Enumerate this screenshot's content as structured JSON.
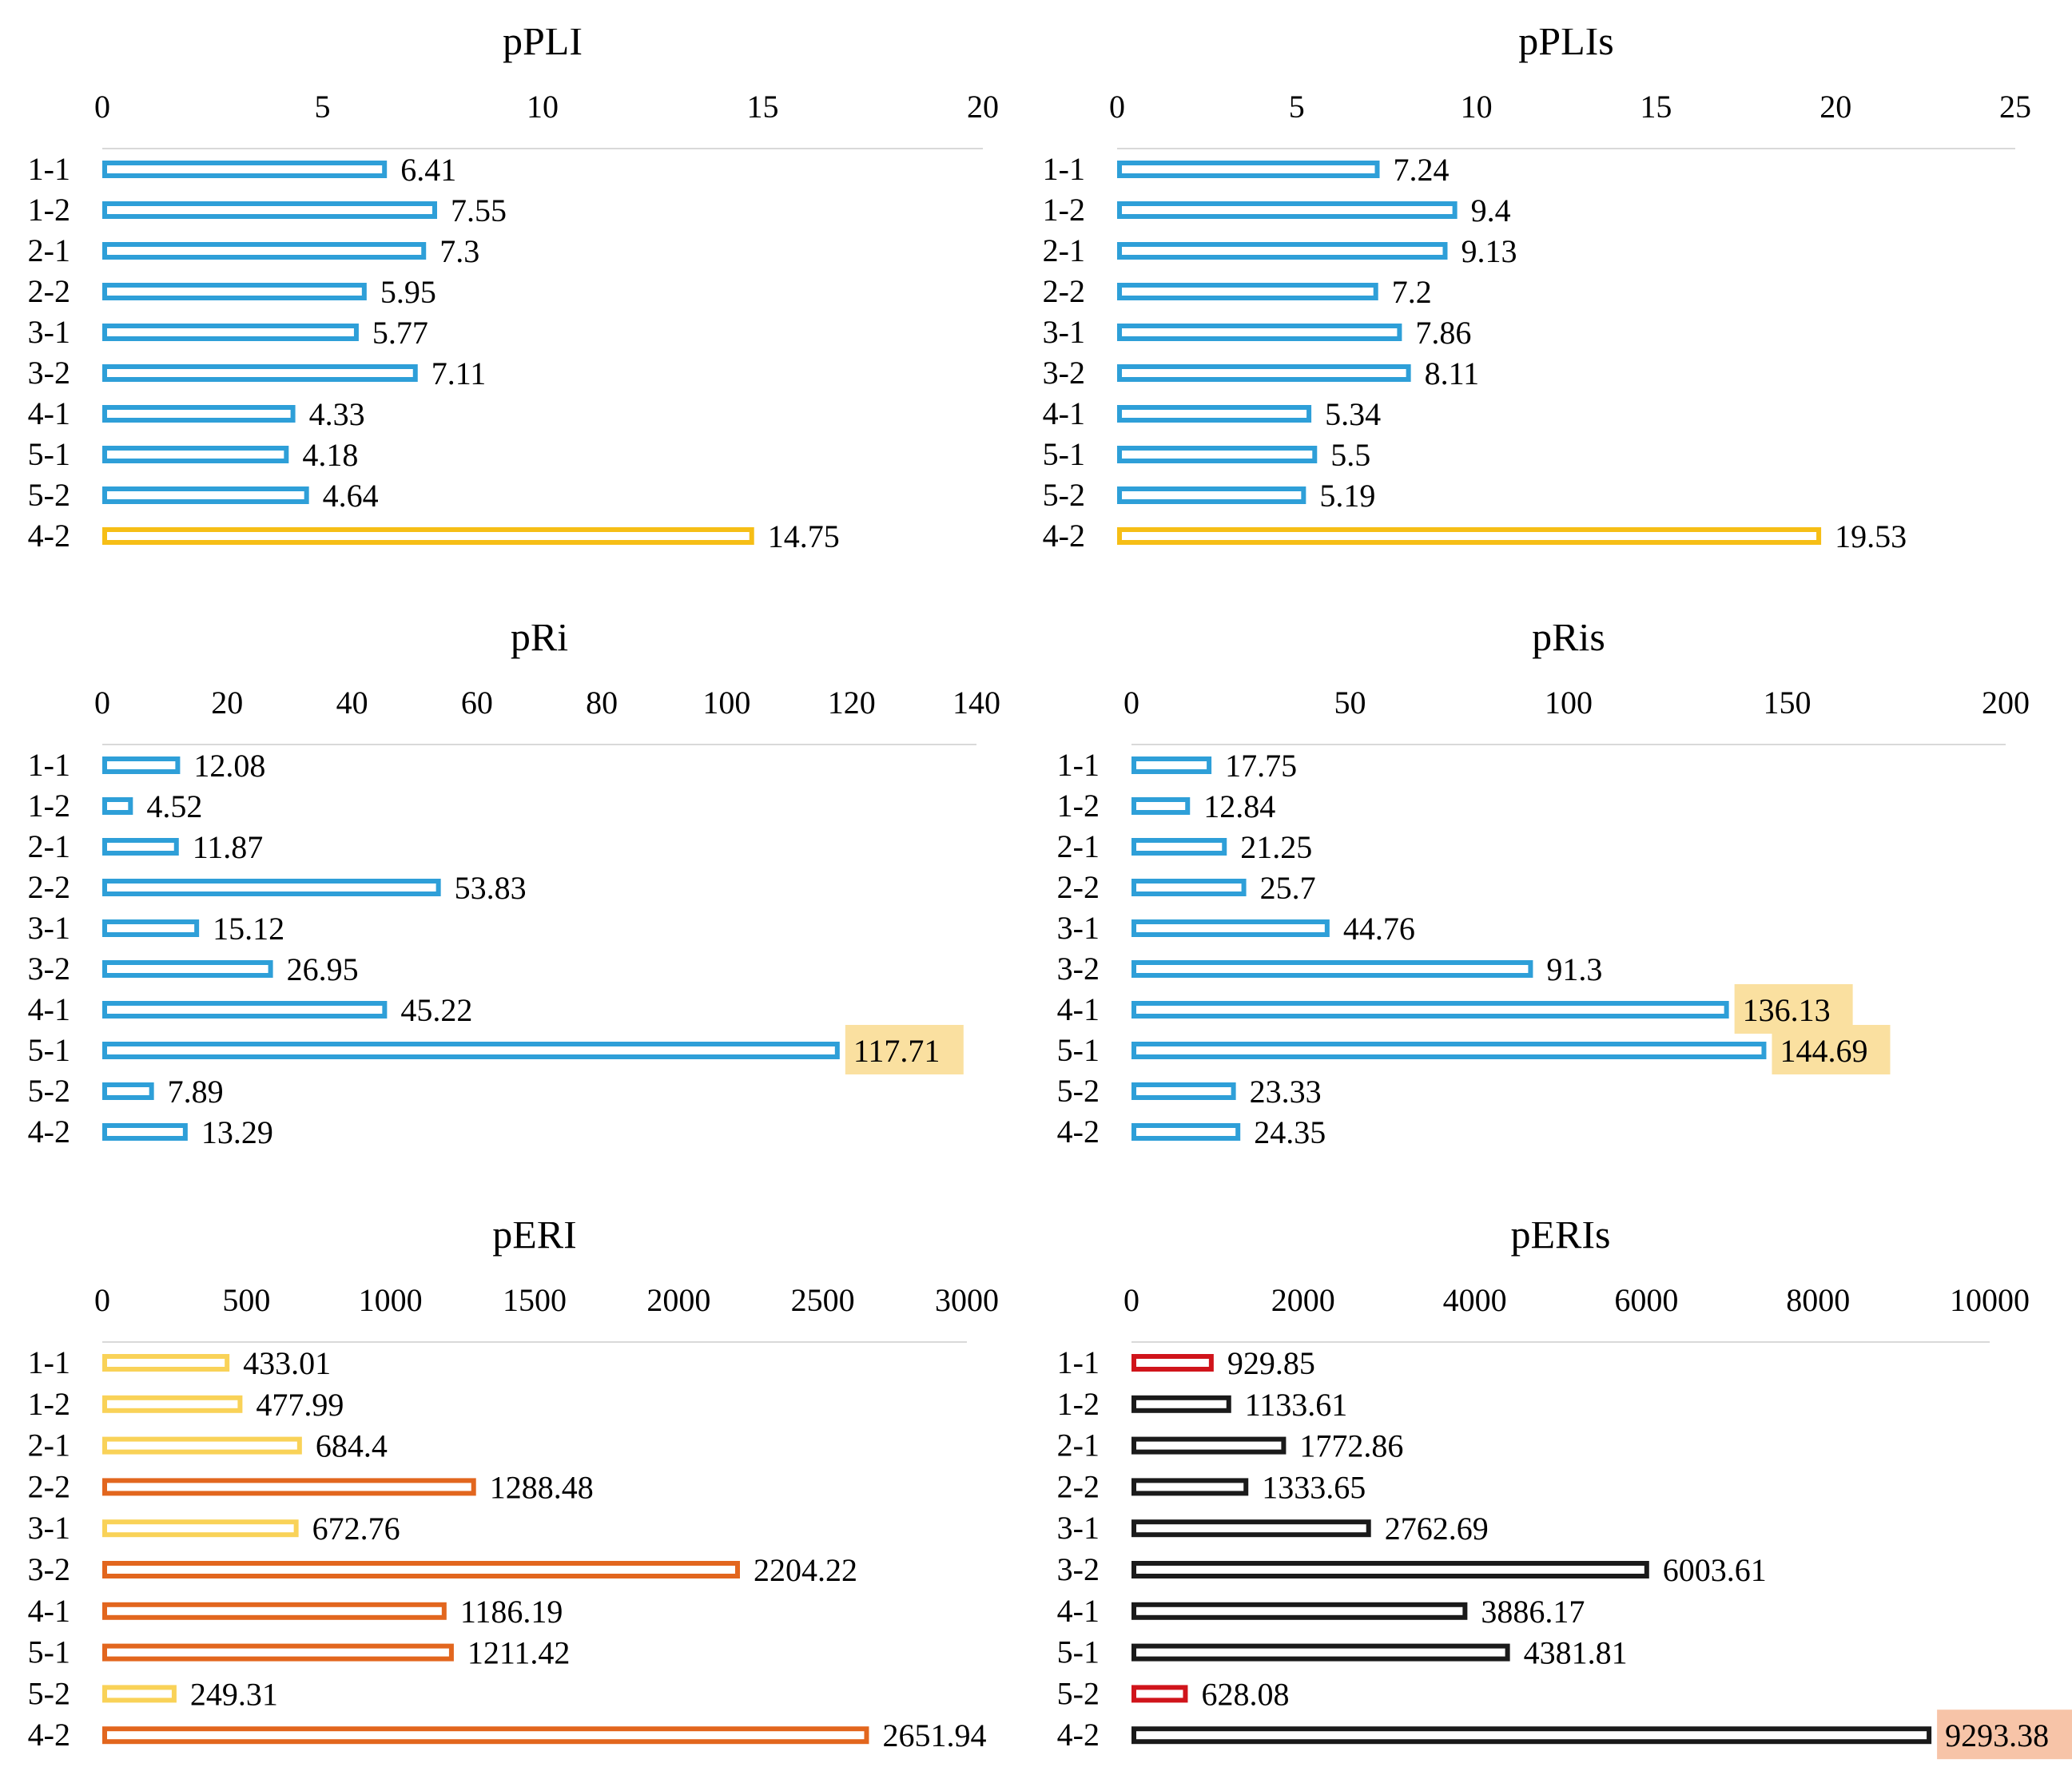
{
  "chart_data": [
    {
      "type": "bar",
      "orientation": "horizontal",
      "title": "pPLI",
      "xlim": [
        0,
        20
      ],
      "ticks": [
        0,
        5,
        10,
        15,
        20
      ],
      "categories": [
        "1-1",
        "1-2",
        "2-1",
        "2-2",
        "3-1",
        "3-2",
        "4-1",
        "5-1",
        "5-2",
        "4-2"
      ],
      "values": [
        6.41,
        7.55,
        7.3,
        5.95,
        5.77,
        7.11,
        4.33,
        4.18,
        4.64,
        14.75
      ],
      "labels": [
        "6.41",
        "7.55",
        "7.3",
        "5.95",
        "5.77",
        "7.11",
        "4.33",
        "4.18",
        "4.64",
        "14.75"
      ],
      "bar_colors": [
        "#2E9FD8",
        "#2E9FD8",
        "#2E9FD8",
        "#2E9FD8",
        "#2E9FD8",
        "#2E9FD8",
        "#2E9FD8",
        "#2E9FD8",
        "#2E9FD8",
        "#F6BE16"
      ],
      "label_highlights": [
        null,
        null,
        null,
        null,
        null,
        null,
        null,
        null,
        null,
        null
      ]
    },
    {
      "type": "bar",
      "orientation": "horizontal",
      "title": "pPLIs",
      "xlim": [
        0,
        25
      ],
      "ticks": [
        0,
        5,
        10,
        15,
        20,
        25
      ],
      "categories": [
        "1-1",
        "1-2",
        "2-1",
        "2-2",
        "3-1",
        "3-2",
        "4-1",
        "5-1",
        "5-2",
        "4-2"
      ],
      "values": [
        7.24,
        9.4,
        9.13,
        7.2,
        7.86,
        8.11,
        5.34,
        5.5,
        5.19,
        19.53
      ],
      "labels": [
        "7.24",
        "9.4",
        "9.13",
        "7.2",
        "7.86",
        "8.11",
        "5.34",
        "5.5",
        "5.19",
        "19.53"
      ],
      "bar_colors": [
        "#2E9FD8",
        "#2E9FD8",
        "#2E9FD8",
        "#2E9FD8",
        "#2E9FD8",
        "#2E9FD8",
        "#2E9FD8",
        "#2E9FD8",
        "#2E9FD8",
        "#F6BE16"
      ],
      "label_highlights": [
        null,
        null,
        null,
        null,
        null,
        null,
        null,
        null,
        null,
        null
      ]
    },
    {
      "type": "bar",
      "orientation": "horizontal",
      "title": "pRi",
      "xlim": [
        0,
        140
      ],
      "ticks": [
        0,
        20,
        40,
        60,
        80,
        100,
        120,
        140
      ],
      "categories": [
        "1-1",
        "1-2",
        "2-1",
        "2-2",
        "3-1",
        "3-2",
        "4-1",
        "5-1",
        "5-2",
        "4-2"
      ],
      "values": [
        12.08,
        4.52,
        11.87,
        53.83,
        15.12,
        26.95,
        45.22,
        117.71,
        7.89,
        13.29
      ],
      "labels": [
        "12.08",
        "4.52",
        "11.87",
        "53.83",
        "15.12",
        "26.95",
        "45.22",
        "117.71",
        "7.89",
        "13.29"
      ],
      "bar_colors": [
        "#2E9FD8",
        "#2E9FD8",
        "#2E9FD8",
        "#2E9FD8",
        "#2E9FD8",
        "#2E9FD8",
        "#2E9FD8",
        "#2E9FD8",
        "#2E9FD8",
        "#2E9FD8"
      ],
      "label_highlights": [
        null,
        null,
        null,
        null,
        null,
        null,
        null,
        "#FAE0A0",
        null,
        null
      ]
    },
    {
      "type": "bar",
      "orientation": "horizontal",
      "title": "pRis",
      "xlim": [
        0,
        200
      ],
      "ticks": [
        0,
        50,
        100,
        150,
        200
      ],
      "categories": [
        "1-1",
        "1-2",
        "2-1",
        "2-2",
        "3-1",
        "3-2",
        "4-1",
        "5-1",
        "5-2",
        "4-2"
      ],
      "values": [
        17.75,
        12.84,
        21.25,
        25.7,
        44.76,
        91.3,
        136.13,
        144.69,
        23.33,
        24.35
      ],
      "labels": [
        "17.75",
        "12.84",
        "21.25",
        "25.7",
        "44.76",
        "91.3",
        "136.13",
        "144.69",
        "23.33",
        "24.35"
      ],
      "bar_colors": [
        "#2E9FD8",
        "#2E9FD8",
        "#2E9FD8",
        "#2E9FD8",
        "#2E9FD8",
        "#2E9FD8",
        "#2E9FD8",
        "#2E9FD8",
        "#2E9FD8",
        "#2E9FD8"
      ],
      "label_highlights": [
        null,
        null,
        null,
        null,
        null,
        null,
        "#FAE0A0",
        "#FAE0A0",
        null,
        null
      ]
    },
    {
      "type": "bar",
      "orientation": "horizontal",
      "title": "pERI",
      "xlim": [
        0,
        3000
      ],
      "ticks": [
        0,
        500,
        1000,
        1500,
        2000,
        2500,
        3000
      ],
      "categories": [
        "1-1",
        "1-2",
        "2-1",
        "2-2",
        "3-1",
        "3-2",
        "4-1",
        "5-1",
        "5-2",
        "4-2"
      ],
      "values": [
        433.01,
        477.99,
        684.4,
        1288.48,
        672.76,
        2204.22,
        1186.19,
        1211.42,
        249.31,
        2651.94
      ],
      "labels": [
        "433.01",
        "477.99",
        "684.4",
        "1288.48",
        "672.76",
        "2204.22",
        "1186.19",
        "1211.42",
        "249.31",
        "2651.94"
      ],
      "bar_colors": [
        "#F9D258",
        "#F9D258",
        "#F9D258",
        "#E2661E",
        "#F9D258",
        "#E2661E",
        "#E2661E",
        "#E2661E",
        "#F9D258",
        "#E2661E"
      ],
      "label_highlights": [
        null,
        null,
        null,
        null,
        null,
        null,
        null,
        null,
        null,
        null
      ]
    },
    {
      "type": "bar",
      "orientation": "horizontal",
      "title": "pERIs",
      "xlim": [
        0,
        10000
      ],
      "ticks": [
        0,
        2000,
        4000,
        6000,
        8000,
        10000
      ],
      "categories": [
        "1-1",
        "1-2",
        "2-1",
        "2-2",
        "3-1",
        "3-2",
        "4-1",
        "5-1",
        "5-2",
        "4-2"
      ],
      "values": [
        929.85,
        1133.61,
        1772.86,
        1333.65,
        2762.69,
        6003.61,
        3886.17,
        4381.81,
        628.08,
        9293.38
      ],
      "labels": [
        "929.85",
        "1133.61",
        "1772.86",
        "1333.65",
        "2762.69",
        "6003.61",
        "3886.17",
        "4381.81",
        "628.08",
        "9293.38"
      ],
      "bar_colors": [
        "#D0141B",
        "#1A1A1A",
        "#1A1A1A",
        "#1A1A1A",
        "#1A1A1A",
        "#1A1A1A",
        "#1A1A1A",
        "#1A1A1A",
        "#D0141B",
        "#1A1A1A"
      ],
      "label_highlights": [
        null,
        null,
        null,
        null,
        null,
        null,
        null,
        null,
        null,
        "#F7C4A8"
      ]
    }
  ]
}
